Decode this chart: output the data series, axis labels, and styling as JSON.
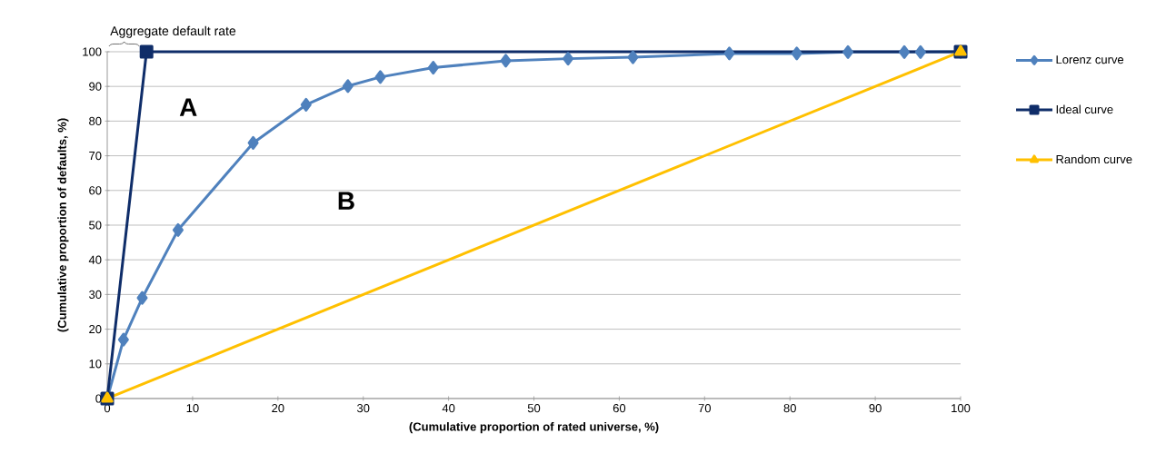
{
  "chart_data": {
    "type": "line",
    "xlabel": "(Cumulative proportion of rated universe, %)",
    "ylabel": "(Cumulative proportion of defaults, %)",
    "xlim": [
      0,
      100
    ],
    "ylim": [
      0,
      100
    ],
    "xticks": [
      0,
      10,
      20,
      30,
      40,
      50,
      60,
      70,
      80,
      90,
      100
    ],
    "yticks": [
      0,
      10,
      20,
      30,
      40,
      50,
      60,
      70,
      80,
      90,
      100
    ],
    "grid": "y",
    "legend": "right",
    "line_style": "solid",
    "series": [
      {
        "name": "Lorenz curve",
        "color": "#4f81bd",
        "marker": "diamond",
        "x": [
          0,
          1.9,
          4.1,
          8.3,
          17.1,
          23.3,
          28.2,
          32.0,
          38.2,
          46.7,
          54.0,
          61.6,
          72.9,
          80.8,
          86.8,
          93.4,
          95.3,
          100
        ],
        "values": [
          0,
          17,
          29,
          48.6,
          73.7,
          84.7,
          90.1,
          92.7,
          95.4,
          97.4,
          98,
          98.4,
          99.5,
          99.5,
          99.9,
          99.9,
          99.9,
          100
        ]
      },
      {
        "name": "Ideal curve",
        "color": "#0f2d69",
        "marker": "square",
        "x": [
          0,
          4.6,
          100
        ],
        "values": [
          0,
          100,
          100
        ]
      },
      {
        "name": "Random curve",
        "color": "#ffc000",
        "marker": "triangle",
        "x": [
          0,
          100
        ],
        "values": [
          0,
          100
        ]
      }
    ],
    "annotations": [
      "Aggregate default rate",
      "A",
      "B"
    ]
  }
}
